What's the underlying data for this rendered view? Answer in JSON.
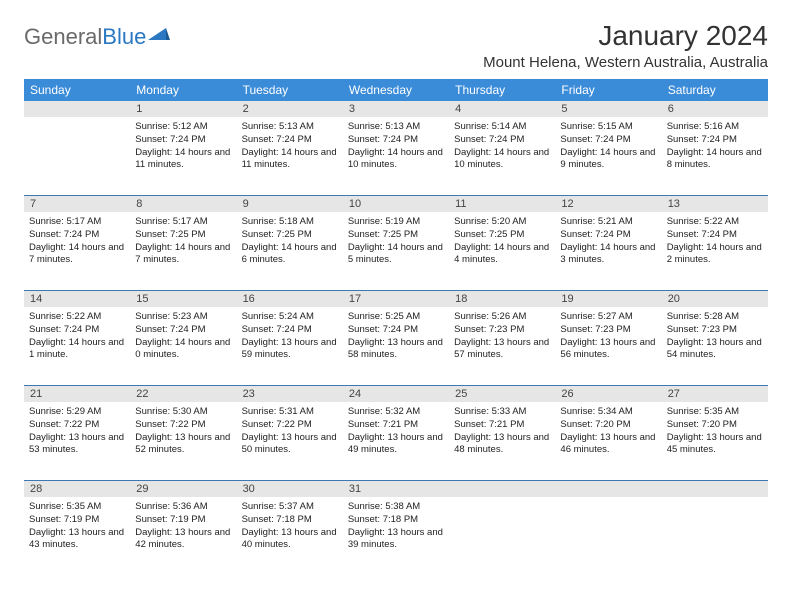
{
  "logo": {
    "text1": "General",
    "text2": "Blue"
  },
  "title": "January 2024",
  "subtitle": "Mount Helena, Western Australia, Australia",
  "colors": {
    "header_bg": "#3a8bd8",
    "header_fg": "#ffffff",
    "daynum_bg": "#e6e6e6",
    "week_border": "#3a7ab0",
    "text": "#222222",
    "logo_gray": "#6a6a6a",
    "logo_blue": "#2b78c2"
  },
  "dayNames": [
    "Sunday",
    "Monday",
    "Tuesday",
    "Wednesday",
    "Thursday",
    "Friday",
    "Saturday"
  ],
  "weeks": [
    {
      "nums": [
        "",
        "1",
        "2",
        "3",
        "4",
        "5",
        "6"
      ],
      "cells": [
        null,
        {
          "sr": "Sunrise: 5:12 AM",
          "ss": "Sunset: 7:24 PM",
          "dl": "Daylight: 14 hours and 11 minutes."
        },
        {
          "sr": "Sunrise: 5:13 AM",
          "ss": "Sunset: 7:24 PM",
          "dl": "Daylight: 14 hours and 11 minutes."
        },
        {
          "sr": "Sunrise: 5:13 AM",
          "ss": "Sunset: 7:24 PM",
          "dl": "Daylight: 14 hours and 10 minutes."
        },
        {
          "sr": "Sunrise: 5:14 AM",
          "ss": "Sunset: 7:24 PM",
          "dl": "Daylight: 14 hours and 10 minutes."
        },
        {
          "sr": "Sunrise: 5:15 AM",
          "ss": "Sunset: 7:24 PM",
          "dl": "Daylight: 14 hours and 9 minutes."
        },
        {
          "sr": "Sunrise: 5:16 AM",
          "ss": "Sunset: 7:24 PM",
          "dl": "Daylight: 14 hours and 8 minutes."
        }
      ]
    },
    {
      "nums": [
        "7",
        "8",
        "9",
        "10",
        "11",
        "12",
        "13"
      ],
      "cells": [
        {
          "sr": "Sunrise: 5:17 AM",
          "ss": "Sunset: 7:24 PM",
          "dl": "Daylight: 14 hours and 7 minutes."
        },
        {
          "sr": "Sunrise: 5:17 AM",
          "ss": "Sunset: 7:25 PM",
          "dl": "Daylight: 14 hours and 7 minutes."
        },
        {
          "sr": "Sunrise: 5:18 AM",
          "ss": "Sunset: 7:25 PM",
          "dl": "Daylight: 14 hours and 6 minutes."
        },
        {
          "sr": "Sunrise: 5:19 AM",
          "ss": "Sunset: 7:25 PM",
          "dl": "Daylight: 14 hours and 5 minutes."
        },
        {
          "sr": "Sunrise: 5:20 AM",
          "ss": "Sunset: 7:25 PM",
          "dl": "Daylight: 14 hours and 4 minutes."
        },
        {
          "sr": "Sunrise: 5:21 AM",
          "ss": "Sunset: 7:24 PM",
          "dl": "Daylight: 14 hours and 3 minutes."
        },
        {
          "sr": "Sunrise: 5:22 AM",
          "ss": "Sunset: 7:24 PM",
          "dl": "Daylight: 14 hours and 2 minutes."
        }
      ]
    },
    {
      "nums": [
        "14",
        "15",
        "16",
        "17",
        "18",
        "19",
        "20"
      ],
      "cells": [
        {
          "sr": "Sunrise: 5:22 AM",
          "ss": "Sunset: 7:24 PM",
          "dl": "Daylight: 14 hours and 1 minute."
        },
        {
          "sr": "Sunrise: 5:23 AM",
          "ss": "Sunset: 7:24 PM",
          "dl": "Daylight: 14 hours and 0 minutes."
        },
        {
          "sr": "Sunrise: 5:24 AM",
          "ss": "Sunset: 7:24 PM",
          "dl": "Daylight: 13 hours and 59 minutes."
        },
        {
          "sr": "Sunrise: 5:25 AM",
          "ss": "Sunset: 7:24 PM",
          "dl": "Daylight: 13 hours and 58 minutes."
        },
        {
          "sr": "Sunrise: 5:26 AM",
          "ss": "Sunset: 7:23 PM",
          "dl": "Daylight: 13 hours and 57 minutes."
        },
        {
          "sr": "Sunrise: 5:27 AM",
          "ss": "Sunset: 7:23 PM",
          "dl": "Daylight: 13 hours and 56 minutes."
        },
        {
          "sr": "Sunrise: 5:28 AM",
          "ss": "Sunset: 7:23 PM",
          "dl": "Daylight: 13 hours and 54 minutes."
        }
      ]
    },
    {
      "nums": [
        "21",
        "22",
        "23",
        "24",
        "25",
        "26",
        "27"
      ],
      "cells": [
        {
          "sr": "Sunrise: 5:29 AM",
          "ss": "Sunset: 7:22 PM",
          "dl": "Daylight: 13 hours and 53 minutes."
        },
        {
          "sr": "Sunrise: 5:30 AM",
          "ss": "Sunset: 7:22 PM",
          "dl": "Daylight: 13 hours and 52 minutes."
        },
        {
          "sr": "Sunrise: 5:31 AM",
          "ss": "Sunset: 7:22 PM",
          "dl": "Daylight: 13 hours and 50 minutes."
        },
        {
          "sr": "Sunrise: 5:32 AM",
          "ss": "Sunset: 7:21 PM",
          "dl": "Daylight: 13 hours and 49 minutes."
        },
        {
          "sr": "Sunrise: 5:33 AM",
          "ss": "Sunset: 7:21 PM",
          "dl": "Daylight: 13 hours and 48 minutes."
        },
        {
          "sr": "Sunrise: 5:34 AM",
          "ss": "Sunset: 7:20 PM",
          "dl": "Daylight: 13 hours and 46 minutes."
        },
        {
          "sr": "Sunrise: 5:35 AM",
          "ss": "Sunset: 7:20 PM",
          "dl": "Daylight: 13 hours and 45 minutes."
        }
      ]
    },
    {
      "nums": [
        "28",
        "29",
        "30",
        "31",
        "",
        "",
        ""
      ],
      "cells": [
        {
          "sr": "Sunrise: 5:35 AM",
          "ss": "Sunset: 7:19 PM",
          "dl": "Daylight: 13 hours and 43 minutes."
        },
        {
          "sr": "Sunrise: 5:36 AM",
          "ss": "Sunset: 7:19 PM",
          "dl": "Daylight: 13 hours and 42 minutes."
        },
        {
          "sr": "Sunrise: 5:37 AM",
          "ss": "Sunset: 7:18 PM",
          "dl": "Daylight: 13 hours and 40 minutes."
        },
        {
          "sr": "Sunrise: 5:38 AM",
          "ss": "Sunset: 7:18 PM",
          "dl": "Daylight: 13 hours and 39 minutes."
        },
        null,
        null,
        null
      ]
    }
  ]
}
